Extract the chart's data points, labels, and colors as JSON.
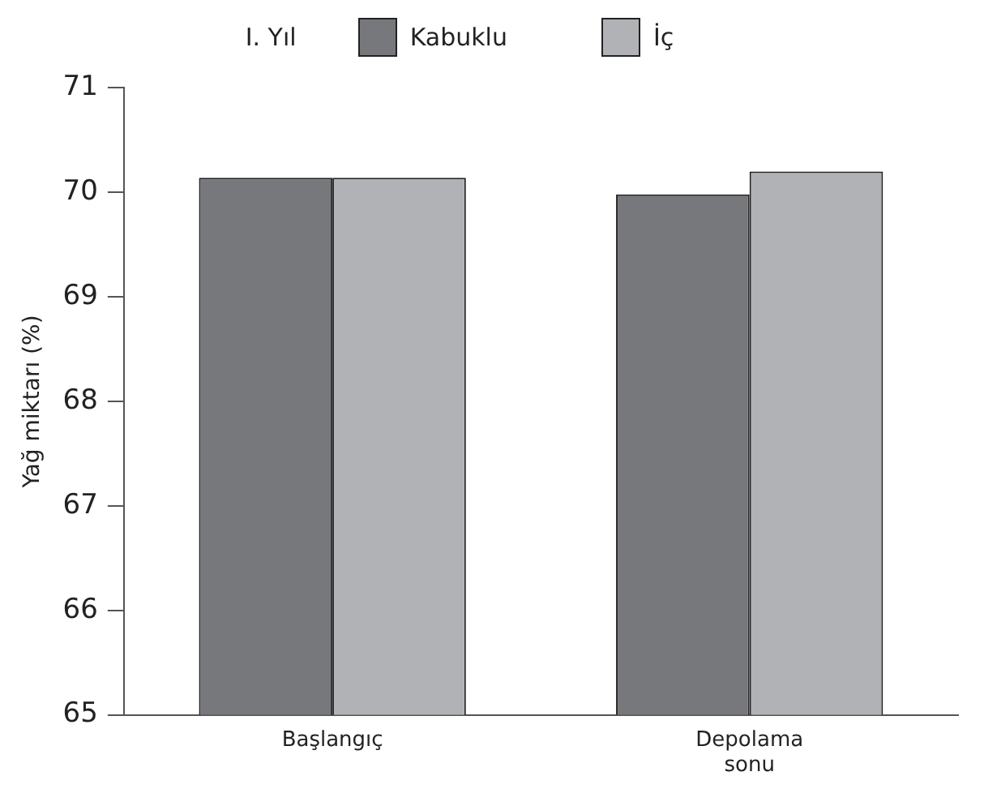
{
  "chart_data": {
    "type": "bar",
    "legend_title": "I. Yıl",
    "ylabel": "Yağ miktarı (%)",
    "categories": [
      "Başlangıç",
      "Depolama sonu"
    ],
    "series": [
      {
        "name": "Kabuklu",
        "color": "#77787b",
        "values": [
          70.14,
          69.98
        ]
      },
      {
        "name": "İç",
        "color": "#b1b2b5",
        "values": [
          70.14,
          70.2
        ]
      }
    ],
    "ylim": [
      65,
      71
    ],
    "yticks": [
      65,
      66,
      67,
      68,
      69,
      70,
      71
    ],
    "grid": false,
    "legend": "top"
  }
}
